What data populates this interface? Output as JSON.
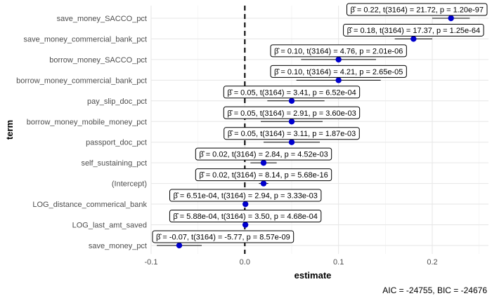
{
  "chart_data": {
    "type": "coefficient-plot",
    "xlabel": "estimate",
    "ylabel": "term",
    "xlim": [
      -0.1,
      0.26
    ],
    "x_ticks": [
      -0.1,
      0.0,
      0.1,
      0.2
    ],
    "x_tick_labels": [
      "-0.1",
      "0.0",
      "0.1",
      "0.2"
    ],
    "reference_line": 0,
    "grid": true,
    "point_color": "#0000cd",
    "terms": [
      "save_money_SACCO_pct",
      "save_money_commercial_bank_pct",
      "borrow_money_SACCO_pct",
      "borrow_money_commercial_bank_pct",
      "pay_slip_doc_pct",
      "borrow_money_mobile_money_pct",
      "passport_doc_pct",
      "self_sustaining_pct",
      "(Intercept)",
      "LOG_distance_commerical_bank",
      "LOG_last_amt_saved",
      "save_money_pct"
    ],
    "points": [
      {
        "term": "save_money_SACCO_pct",
        "estimate": 0.22,
        "ci": [
          0.2,
          0.24
        ],
        "label": "β̂ = 0.22, t(3164) = 21.72, p = 1.20e-97"
      },
      {
        "term": "save_money_commercial_bank_pct",
        "estimate": 0.18,
        "ci": [
          0.16,
          0.2
        ],
        "label": "β̂ = 0.18, t(3164) = 17.37, p = 1.25e-64"
      },
      {
        "term": "borrow_money_SACCO_pct",
        "estimate": 0.1,
        "ci": [
          0.06,
          0.14
        ],
        "label": "β̂ = 0.10, t(3164) = 4.76, p = 2.01e-06"
      },
      {
        "term": "borrow_money_commercial_bank_pct",
        "estimate": 0.1,
        "ci": [
          0.055,
          0.145
        ],
        "label": "β̂ = 0.10, t(3164) = 4.21, p = 2.65e-05"
      },
      {
        "term": "pay_slip_doc_pct",
        "estimate": 0.05,
        "ci": [
          0.024,
          0.085
        ],
        "label": "β̂ = 0.05, t(3164) = 3.41, p = 6.52e-04"
      },
      {
        "term": "borrow_money_mobile_money_pct",
        "estimate": 0.05,
        "ci": [
          0.017,
          0.083
        ],
        "label": "β̂ = 0.05, t(3164) = 2.91, p = 3.60e-03"
      },
      {
        "term": "passport_doc_pct",
        "estimate": 0.05,
        "ci": [
          0.02,
          0.08
        ],
        "label": "β̂ = 0.05, t(3164) = 3.11, p = 1.87e-03"
      },
      {
        "term": "self_sustaining_pct",
        "estimate": 0.02,
        "ci": [
          0.006,
          0.034
        ],
        "label": "β̂ = 0.02, t(3164) = 2.84, p = 4.52e-03"
      },
      {
        "term": "(Intercept)",
        "estimate": 0.02,
        "ci": [
          0.015,
          0.025
        ],
        "label": "β̂ = 0.02, t(3164) = 8.14, p = 5.68e-16"
      },
      {
        "term": "LOG_distance_commerical_bank",
        "estimate": 0.000651,
        "ci": [
          0.0002,
          0.0011
        ],
        "label": "β̂ = 6.51e-04, t(3164) = 2.94, p = 3.33e-03"
      },
      {
        "term": "LOG_last_amt_saved",
        "estimate": 0.000588,
        "ci": [
          0.0003,
          0.0009
        ],
        "label": "β̂ = 5.88e-04, t(3164) = 3.50, p = 4.68e-04"
      },
      {
        "term": "save_money_pct",
        "estimate": -0.07,
        "ci": [
          -0.094,
          -0.046
        ],
        "label": "β̂ = -0.07, t(3164) = -5.77, p = 8.57e-09"
      }
    ],
    "caption": "AIC = -24755, BIC = -24676"
  }
}
